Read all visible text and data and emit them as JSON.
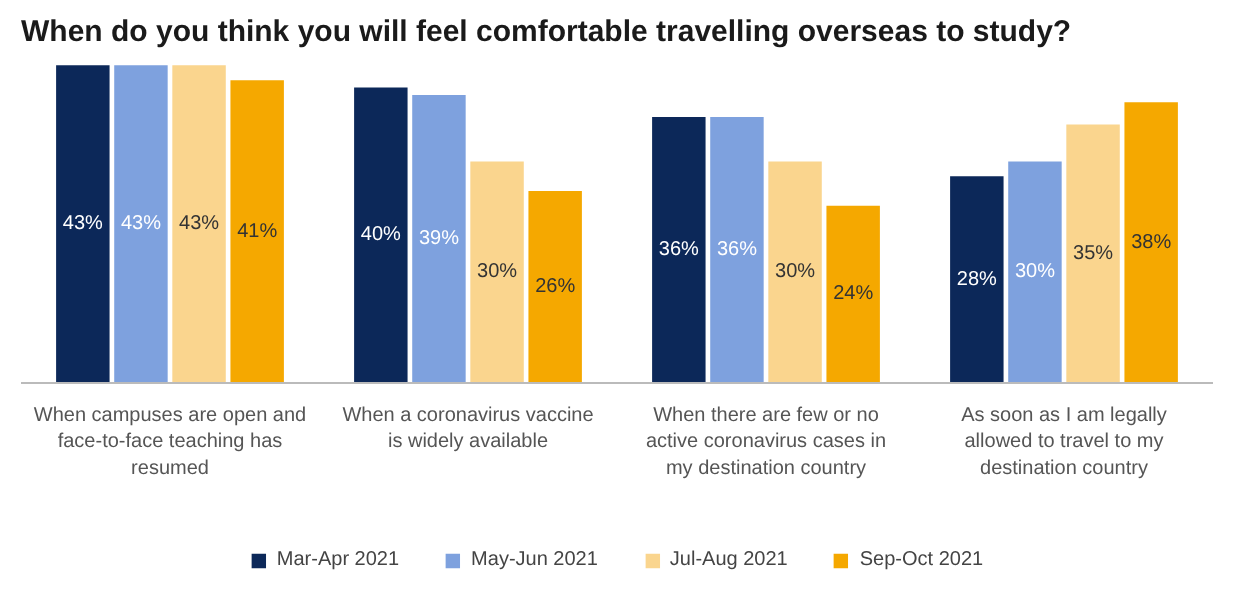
{
  "chart_data": {
    "type": "bar",
    "title": "When do you think you will feel comfortable travelling overseas to study?",
    "categories": [
      "When campuses are open and face-to-face teaching has resumed",
      "When a coronavirus vaccine is widely available",
      "When there are few or no active coronavirus cases in my destination country",
      "As soon as I am legally allowed to travel to my destination country"
    ],
    "series": [
      {
        "name": "Mar-Apr 2021",
        "color": "#0c2859",
        "values": [
          43,
          40,
          36,
          28
        ],
        "value_labels": [
          "43%",
          "40%",
          "36%",
          "28%"
        ]
      },
      {
        "name": "May-Jun 2021",
        "color": "#7ea1de",
        "values": [
          43,
          39,
          36,
          30
        ],
        "value_labels": [
          "43%",
          "39%",
          "36%",
          "30%"
        ]
      },
      {
        "name": "Jul-Aug 2021",
        "color": "#fad58e",
        "values": [
          43,
          30,
          30,
          35
        ],
        "value_labels": [
          "43%",
          "30%",
          "30%",
          "35%"
        ]
      },
      {
        "name": "Sep-Oct 2021",
        "color": "#f5a800",
        "values": [
          41,
          26,
          24,
          38
        ],
        "value_labels": [
          "41%",
          "26%",
          "24%",
          "38%"
        ]
      }
    ],
    "legend": "bottom"
  }
}
